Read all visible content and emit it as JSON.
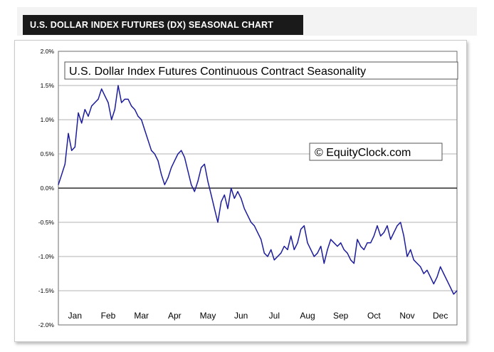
{
  "banner": {
    "text": "U.S. DOLLAR INDEX FUTURES (DX) SEASONAL CHART"
  },
  "watermark": {
    "text": "© EquityClock.com"
  },
  "colors": {
    "line": "#1c1c9c",
    "grid": "#9a9a9a",
    "zero_line": "#000000",
    "banner_bg": "#1a1a1a"
  },
  "chart_data": {
    "type": "line",
    "title": "U.S. Dollar Index Futures Continuous Contract Seasonality",
    "xlabel": "",
    "ylabel": "",
    "ylim": [
      -2.0,
      2.0
    ],
    "ytick_labels": [
      "2.0%",
      "1.5%",
      "1.0%",
      "0.5%",
      "0.0%",
      "-0.5%",
      "-1.0%",
      "-1.5%",
      "-2.0%"
    ],
    "ytick_values": [
      2.0,
      1.5,
      1.0,
      0.5,
      0.0,
      -0.5,
      -1.0,
      -1.5,
      -2.0
    ],
    "x_categories": [
      "Jan",
      "Feb",
      "Mar",
      "Apr",
      "May",
      "Jun",
      "Jul",
      "Aug",
      "Sep",
      "Oct",
      "Nov",
      "Dec"
    ],
    "grid": "horizontal",
    "series": [
      {
        "x": [
          0,
          0.1,
          0.2,
          0.3,
          0.4,
          0.5,
          0.6,
          0.7,
          0.8,
          0.9,
          1.0,
          1.1,
          1.2,
          1.3,
          1.4,
          1.5,
          1.6,
          1.7,
          1.8,
          1.9,
          2.0,
          2.1,
          2.2,
          2.3,
          2.4,
          2.5,
          2.6,
          2.7,
          2.8,
          2.9,
          3.0,
          3.1,
          3.2,
          3.3,
          3.4,
          3.5,
          3.6,
          3.7,
          3.8,
          3.9,
          4.0,
          4.1,
          4.2,
          4.3,
          4.4,
          4.5,
          4.6,
          4.7,
          4.8,
          4.9,
          5.0,
          5.1,
          5.2,
          5.3,
          5.4,
          5.5,
          5.6,
          5.7,
          5.8,
          5.9,
          6.0,
          6.1,
          6.2,
          6.3,
          6.4,
          6.5,
          6.6,
          6.7,
          6.8,
          6.9,
          7.0,
          7.1,
          7.2,
          7.3,
          7.4,
          7.5,
          7.6,
          7.7,
          7.8,
          7.9,
          8.0,
          8.1,
          8.2,
          8.3,
          8.4,
          8.5,
          8.6,
          8.7,
          8.8,
          8.9,
          9.0,
          9.1,
          9.2,
          9.3,
          9.4,
          9.5,
          9.6,
          9.7,
          9.8,
          9.9,
          10.0,
          10.1,
          10.2,
          10.3,
          10.4,
          10.5,
          10.6,
          10.7,
          10.8,
          10.9,
          11.0,
          11.1,
          11.2,
          11.3,
          11.4,
          11.5,
          11.6,
          11.7,
          11.8,
          11.9,
          12.0
        ],
        "values": [
          0.05,
          0.2,
          0.35,
          0.8,
          0.55,
          0.6,
          1.1,
          0.95,
          1.15,
          1.05,
          1.2,
          1.25,
          1.3,
          1.45,
          1.35,
          1.25,
          1.0,
          1.15,
          1.5,
          1.25,
          1.3,
          1.3,
          1.2,
          1.15,
          1.05,
          1.0,
          0.85,
          0.7,
          0.55,
          0.5,
          0.4,
          0.2,
          0.05,
          0.15,
          0.3,
          0.4,
          0.5,
          0.55,
          0.45,
          0.25,
          0.05,
          -0.05,
          0.1,
          0.3,
          0.35,
          0.1,
          -0.1,
          -0.3,
          -0.5,
          -0.2,
          -0.1,
          -0.3,
          0.0,
          -0.15,
          -0.05,
          -0.15,
          -0.3,
          -0.4,
          -0.5,
          -0.55,
          -0.65,
          -0.75,
          -0.95,
          -1.0,
          -0.9,
          -1.05,
          -1.0,
          -0.95,
          -0.85,
          -0.9,
          -0.7,
          -0.9,
          -0.8,
          -0.6,
          -0.55,
          -0.8,
          -0.9,
          -1.0,
          -0.95,
          -0.85,
          -1.1,
          -0.9,
          -0.75,
          -0.8,
          -0.85,
          -0.8,
          -0.9,
          -0.95,
          -1.05,
          -1.1,
          -0.75,
          -0.85,
          -0.9,
          -0.8,
          -0.8,
          -0.7,
          -0.55,
          -0.7,
          -0.65,
          -0.55,
          -0.75,
          -0.65,
          -0.55,
          -0.5,
          -0.7,
          -1.0,
          -0.9,
          -1.05,
          -1.1,
          -1.15,
          -1.25,
          -1.2,
          -1.3,
          -1.4,
          -1.3,
          -1.15,
          -1.25,
          -1.35,
          -1.45,
          -1.55,
          -1.5
        ]
      }
    ]
  }
}
